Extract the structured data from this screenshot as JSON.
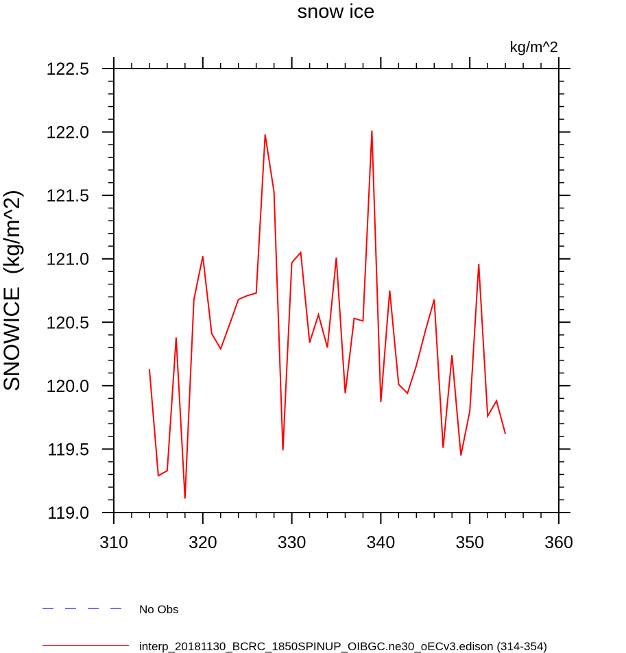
{
  "chart_data": {
    "type": "line",
    "title": "snow ice",
    "units_label": "kg/m^2",
    "ylabel": "SNOWICE  (kg/m^2)",
    "xlabel": "",
    "xlim": [
      310,
      360
    ],
    "ylim": [
      119.0,
      122.5
    ],
    "x_ticks": [
      310,
      320,
      330,
      340,
      350,
      360
    ],
    "y_ticks": [
      119.0,
      119.5,
      120.0,
      120.5,
      121.0,
      121.5,
      122.0,
      122.5
    ],
    "x_tick_labels": [
      "310",
      "320",
      "330",
      "340",
      "350",
      "360"
    ],
    "y_tick_labels": [
      "119.0",
      "119.5",
      "120.0",
      "120.5",
      "121.0",
      "121.5",
      "122.0",
      "122.5"
    ],
    "grid": false,
    "legend_position": "bottom",
    "series": [
      {
        "name": "interp_20181130_BCRC_1850SPINUP_OIBGC.ne30_oECv3.edison (314-354)",
        "color": "#ff0000",
        "style": "solid",
        "x": [
          314,
          315,
          316,
          317,
          318,
          319,
          320,
          321,
          322,
          323,
          324,
          325,
          326,
          327,
          328,
          329,
          330,
          331,
          332,
          333,
          334,
          335,
          336,
          337,
          338,
          339,
          340,
          341,
          342,
          343,
          344,
          345,
          346,
          347,
          348,
          349,
          350,
          351,
          352,
          353,
          354
        ],
        "y": [
          120.13,
          119.29,
          119.33,
          120.38,
          119.11,
          120.68,
          121.02,
          120.41,
          120.29,
          120.48,
          120.68,
          120.71,
          120.73,
          121.98,
          121.53,
          119.49,
          120.97,
          121.05,
          120.34,
          120.56,
          120.3,
          121.01,
          119.94,
          120.53,
          120.51,
          122.01,
          119.87,
          120.75,
          120.01,
          119.94,
          120.16,
          120.43,
          120.68,
          119.51,
          120.24,
          119.45,
          119.8,
          120.96,
          119.76,
          119.88,
          119.62
        ]
      }
    ],
    "legend": [
      {
        "label": "No Obs",
        "color": "#4444ff",
        "style": "dashed"
      },
      {
        "label": "interp_20181130_BCRC_1850SPINUP_OIBGC.ne30_oECv3.edison (314-354)",
        "color": "#ff0000",
        "style": "solid"
      }
    ]
  }
}
